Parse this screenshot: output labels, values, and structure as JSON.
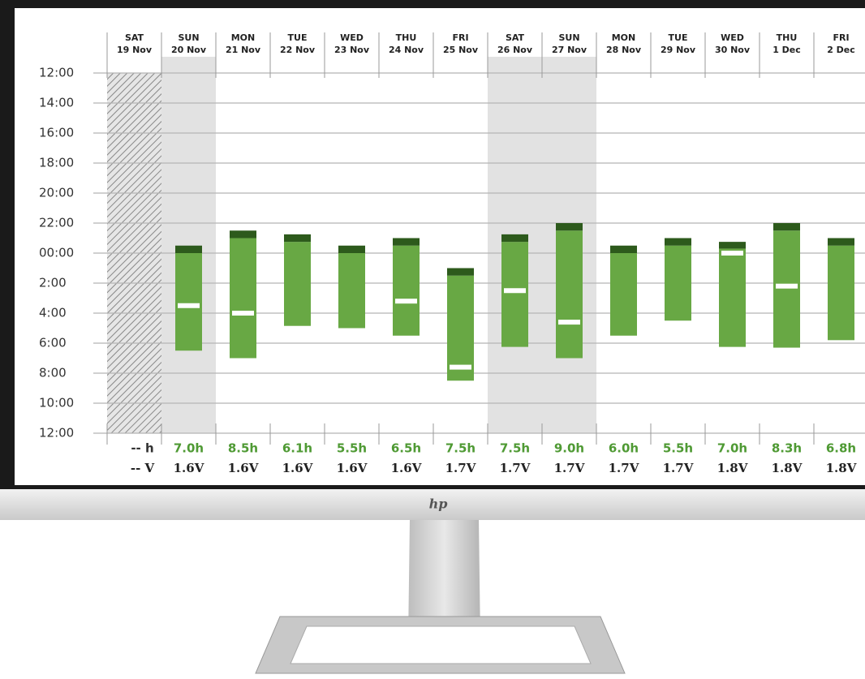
{
  "chart_data": {
    "type": "range_bar",
    "days": [
      "SAT",
      "SUN",
      "MON",
      "TUE",
      "WED",
      "THU",
      "FRI",
      "SAT",
      "SUN",
      "MON",
      "TUE",
      "WED",
      "THU",
      "FRI"
    ],
    "dates": [
      "19 Nov",
      "20 Nov",
      "21 Nov",
      "22 Nov",
      "23 Nov",
      "24 Nov",
      "25 Nov",
      "26 Nov",
      "27 Nov",
      "28 Nov",
      "29 Nov",
      "30 Nov",
      "1 Dec",
      "2 Dec"
    ],
    "shaded": [
      false,
      true,
      false,
      false,
      false,
      false,
      false,
      true,
      true,
      false,
      false,
      false,
      false,
      false
    ],
    "ylim": [
      12,
      36
    ],
    "y_inverted": true,
    "grid": true,
    "yticks": [
      {
        "value": 12,
        "label": "12:00"
      },
      {
        "value": 14,
        "label": "14:00"
      },
      {
        "value": 16,
        "label": "16:00"
      },
      {
        "value": 18,
        "label": "18:00"
      },
      {
        "value": 20,
        "label": "20:00"
      },
      {
        "value": 22,
        "label": "22:00"
      },
      {
        "value": 24,
        "label": "00:00"
      },
      {
        "value": 26,
        "label": "2:00"
      },
      {
        "value": 28,
        "label": "4:00"
      },
      {
        "value": 30,
        "label": "6:00"
      },
      {
        "value": 32,
        "label": "8:00"
      },
      {
        "value": 34,
        "label": "10:00"
      },
      {
        "value": 36,
        "label": "12:00"
      }
    ],
    "start": [
      null,
      23.5,
      22.5,
      22.75,
      23.5,
      23.0,
      25.0,
      22.75,
      22.0,
      23.5,
      23.0,
      23.25,
      22.0,
      23.0
    ],
    "asleep": [
      null,
      24.0,
      23.0,
      23.25,
      24.0,
      23.5,
      25.5,
      23.25,
      22.5,
      24.0,
      23.5,
      23.7,
      22.5,
      23.5
    ],
    "end": [
      null,
      30.5,
      31.0,
      28.85,
      29.0,
      29.5,
      32.5,
      30.25,
      31.0,
      29.5,
      28.5,
      30.25,
      30.3,
      29.8
    ],
    "marker": [
      null,
      27.5,
      28.0,
      null,
      null,
      27.2,
      31.6,
      26.5,
      28.6,
      null,
      null,
      24.0,
      26.2,
      null
    ],
    "colors": {
      "bar": "#68a844",
      "settle": "#2d5a1c",
      "marker": "#ffffff",
      "shade": "#e2e2e2",
      "duration": "#4f9a34"
    },
    "duration": {
      "values": [
        null,
        7.0,
        8.5,
        6.1,
        5.5,
        6.5,
        7.5,
        7.5,
        9.0,
        6.0,
        5.5,
        7.0,
        8.3,
        6.8
      ],
      "value_labels": [
        "-- h",
        "7.0h",
        "8.5h",
        "6.1h",
        "5.5h",
        "6.5h",
        "7.5h",
        "7.5h",
        "9.0h",
        "6.0h",
        "5.5h",
        "7.0h",
        "8.3h",
        "6.8h"
      ]
    },
    "voltage": {
      "values": [
        null,
        1.6,
        1.6,
        1.6,
        1.6,
        1.6,
        1.7,
        1.7,
        1.7,
        1.7,
        1.7,
        1.8,
        1.8,
        1.8
      ],
      "value_labels": [
        "-- V",
        "1.6V",
        "1.6V",
        "1.6V",
        "1.6V",
        "1.6V",
        "1.7V",
        "1.7V",
        "1.7V",
        "1.7V",
        "1.7V",
        "1.8V",
        "1.8V",
        "1.8V"
      ]
    }
  },
  "monitor": {
    "logo": "hp"
  }
}
